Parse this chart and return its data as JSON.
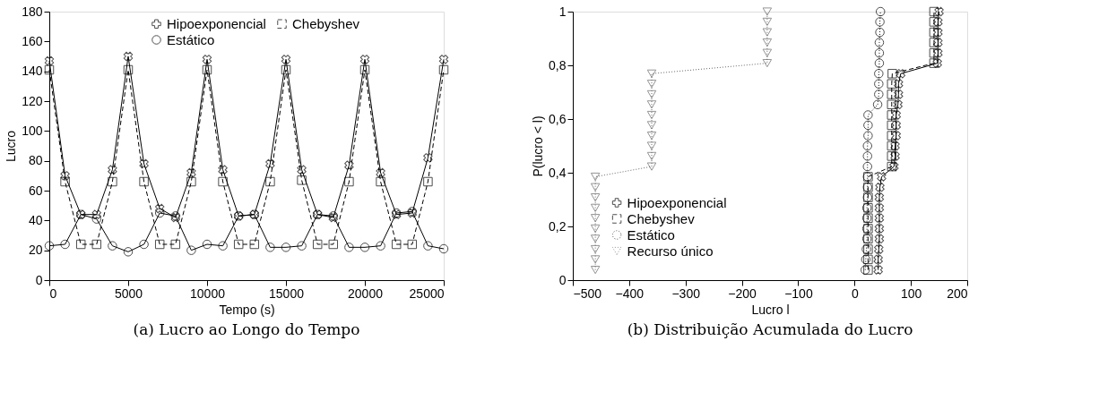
{
  "chart_data": [
    {
      "type": "line",
      "xlabel": "Tempo (s)",
      "ylabel": "Lucro",
      "annotations": [
        "(a) Lucro ao Longo do Tempo"
      ],
      "x": [
        0,
        1000,
        2000,
        3000,
        4000,
        5000,
        6000,
        7000,
        8000,
        9000,
        10000,
        11000,
        12000,
        13000,
        14000,
        15000,
        16000,
        17000,
        18000,
        19000,
        20000,
        21000,
        22000,
        23000,
        24000,
        25000
      ],
      "series": [
        {
          "name": "Hipoexponencial",
          "color": "#000000",
          "marker": "cross",
          "line_style": "solid",
          "values": [
            147,
            70,
            44,
            44,
            74,
            150,
            78,
            48,
            42,
            72,
            148,
            74,
            43,
            44,
            78,
            148,
            74,
            44,
            42,
            77,
            148,
            72,
            44,
            45,
            82,
            148
          ]
        },
        {
          "name": "Chebyshev",
          "color": "#000000",
          "marker": "square",
          "line_style": "dashed",
          "values": [
            141,
            66,
            24,
            24,
            66,
            141,
            66,
            24,
            24,
            66,
            141,
            66,
            24,
            24,
            66,
            141,
            67,
            24,
            24,
            66,
            141,
            66,
            24,
            24,
            66,
            141
          ]
        },
        {
          "name": "Estático",
          "color": "#000000",
          "marker": "circle",
          "line_style": "solid",
          "values": [
            23,
            24,
            44,
            41,
            23,
            19,
            24,
            45,
            43,
            20,
            24,
            23,
            43,
            44,
            22,
            22,
            23,
            44,
            43,
            22,
            22,
            23,
            45,
            46,
            23,
            21
          ]
        }
      ],
      "xlim": [
        0,
        25000
      ],
      "xticks": [
        0,
        5000,
        10000,
        15000,
        20000,
        25000
      ],
      "ylim": [
        0,
        180
      ],
      "yticks": [
        0,
        20,
        40,
        60,
        80,
        100,
        120,
        140,
        160,
        180
      ],
      "legend": "top",
      "grid": false
    },
    {
      "type": "line",
      "xlabel": "Lucro l",
      "ylabel": "P(lucro < l)",
      "annotations": [
        "(b) Distribuição Acumulada do Lucro"
      ],
      "series": [
        {
          "name": "Hipoexponencial",
          "color": "#000000",
          "marker": "cross",
          "line_style": "solid",
          "x": [
            42,
            42,
            43,
            44,
            44,
            44,
            44,
            44,
            45,
            48,
            70,
            72,
            72,
            74,
            74,
            74,
            77,
            78,
            78,
            82,
            147,
            148,
            148,
            148,
            148,
            150
          ],
          "values": [
            0.038,
            0.077,
            0.115,
            0.154,
            0.192,
            0.231,
            0.269,
            0.308,
            0.346,
            0.385,
            0.423,
            0.462,
            0.5,
            0.538,
            0.577,
            0.615,
            0.654,
            0.692,
            0.731,
            0.769,
            0.808,
            0.846,
            0.885,
            0.923,
            0.962,
            1
          ]
        },
        {
          "name": "Chebyshev",
          "color": "#000000",
          "marker": "square",
          "line_style": "dashed",
          "x": [
            24,
            24,
            24,
            24,
            24,
            24,
            24,
            24,
            24,
            24,
            66,
            66,
            66,
            66,
            66,
            66,
            66,
            66,
            66,
            67,
            141,
            141,
            141,
            141,
            141,
            141
          ],
          "values": [
            0.038,
            0.077,
            0.115,
            0.154,
            0.192,
            0.231,
            0.269,
            0.308,
            0.346,
            0.385,
            0.423,
            0.462,
            0.5,
            0.538,
            0.577,
            0.615,
            0.654,
            0.692,
            0.731,
            0.769,
            0.808,
            0.846,
            0.885,
            0.923,
            0.962,
            1
          ]
        },
        {
          "name": "Estático",
          "color": "#000000",
          "marker": "circle",
          "line_style": "dotted",
          "x": [
            19,
            20,
            21,
            22,
            22,
            22,
            22,
            23,
            23,
            23,
            23,
            23,
            23,
            24,
            24,
            24,
            41,
            43,
            43,
            43,
            44,
            44,
            44,
            45,
            45,
            46
          ],
          "values": [
            0.038,
            0.077,
            0.115,
            0.154,
            0.192,
            0.231,
            0.269,
            0.308,
            0.346,
            0.385,
            0.423,
            0.462,
            0.5,
            0.538,
            0.577,
            0.615,
            0.654,
            0.692,
            0.731,
            0.769,
            0.808,
            0.846,
            0.885,
            0.923,
            0.962,
            1
          ]
        },
        {
          "name": "Recurso único",
          "color": "#666666",
          "marker": "triangle",
          "line_style": "dotted",
          "x": [
            -460,
            -460,
            -460,
            -460,
            -460,
            -460,
            -460,
            -460,
            -460,
            -460,
            -360,
            -360,
            -360,
            -360,
            -360,
            -360,
            -360,
            -360,
            -360,
            -360,
            -155,
            -155,
            -155,
            -155,
            -155,
            -155
          ],
          "values": [
            0.038,
            0.077,
            0.115,
            0.154,
            0.192,
            0.231,
            0.269,
            0.308,
            0.346,
            0.385,
            0.423,
            0.462,
            0.5,
            0.538,
            0.577,
            0.615,
            0.654,
            0.692,
            0.731,
            0.769,
            0.808,
            0.846,
            0.885,
            0.923,
            0.962,
            1
          ]
        }
      ],
      "xlim": [
        -500,
        200
      ],
      "xticks": [
        {
          "value": -500,
          "label": "−500"
        },
        {
          "value": -400,
          "label": "−400"
        },
        {
          "value": -300,
          "label": "−300"
        },
        {
          "value": -200,
          "label": "−200"
        },
        {
          "value": -100,
          "label": "−100"
        },
        0,
        100,
        200
      ],
      "ylim": [
        0,
        1
      ],
      "yticks": [
        0,
        {
          "value": 0.2,
          "label": "0,2"
        },
        {
          "value": 0.4,
          "label": "0,4"
        },
        {
          "value": 0.6,
          "label": "0,6"
        },
        {
          "value": 0.8,
          "label": "0,8"
        },
        1
      ],
      "legend": "bottom left",
      "grid": false
    }
  ]
}
